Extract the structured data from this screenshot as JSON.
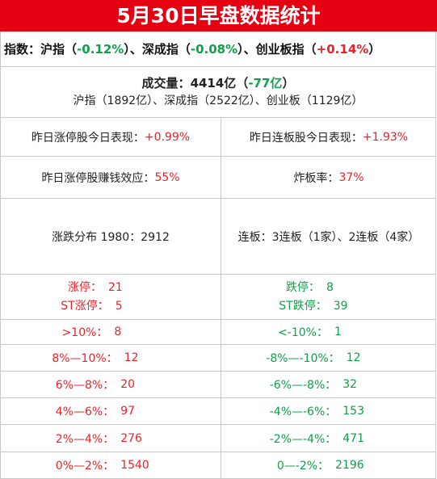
{
  "title": "5月30日早盘数据统计",
  "indices": {
    "prefix": "指数：",
    "sh_label": "沪指",
    "sh_value": "-0.12%",
    "sz_label": "深成指",
    "sz_value": "-0.08%",
    "cy_label": "创业板指",
    "cy_value": "+0.14%"
  },
  "volume": {
    "label": "成交量：",
    "total": "4414亿",
    "change": "-77亿",
    "detail": "沪指（1892亿）、深成指（2522亿）、创业板（1129亿）"
  },
  "stats": {
    "limitup_today_label": "昨日涨停股今日表现：",
    "limitup_today_value": "+0.99%",
    "consecutive_today_label": "昨日连板股今日表现：",
    "consecutive_today_value": "+1.93%",
    "profit_effect_label": "昨日涨停股赚钱效应：",
    "profit_effect_value": "55%",
    "break_rate_label": "炸板率：",
    "break_rate_value": "37%",
    "distribution": "涨跌分布 1980：2912",
    "consecutive_boards": "连板：3连板（1家）、2连板（4家）"
  },
  "table": {
    "limit_up_label": "涨停：",
    "limit_up_value": "21",
    "st_limit_up_label": "ST涨停：",
    "st_limit_up_value": "5",
    "limit_down_label": "跌停：",
    "limit_down_value": "8",
    "st_limit_down_label": "ST跌停：",
    "st_limit_down_value": "39",
    "rows": [
      {
        "up_label": ">10%：",
        "up_value": "8",
        "down_label": "<-10%：",
        "down_value": "1"
      },
      {
        "up_label": "8%—10%：",
        "up_value": "12",
        "down_label": "-8%—-10%：",
        "down_value": "12"
      },
      {
        "up_label": "6%—8%：",
        "up_value": "20",
        "down_label": "-6%—-8%：",
        "down_value": "32"
      },
      {
        "up_label": "4%—6%：",
        "up_value": "97",
        "down_label": "-4%—-6%：",
        "down_value": "153"
      },
      {
        "up_label": "2%—4%：",
        "up_value": "276",
        "down_label": "-2%—-4%：",
        "down_value": "471"
      },
      {
        "up_label": "0%—2%：",
        "up_value": "1540",
        "down_label": "0—-2%：",
        "down_value": "2196"
      }
    ]
  },
  "colors": {
    "title_bg": "#e50012",
    "up": "#e8232b",
    "down": "#0ea04a"
  }
}
